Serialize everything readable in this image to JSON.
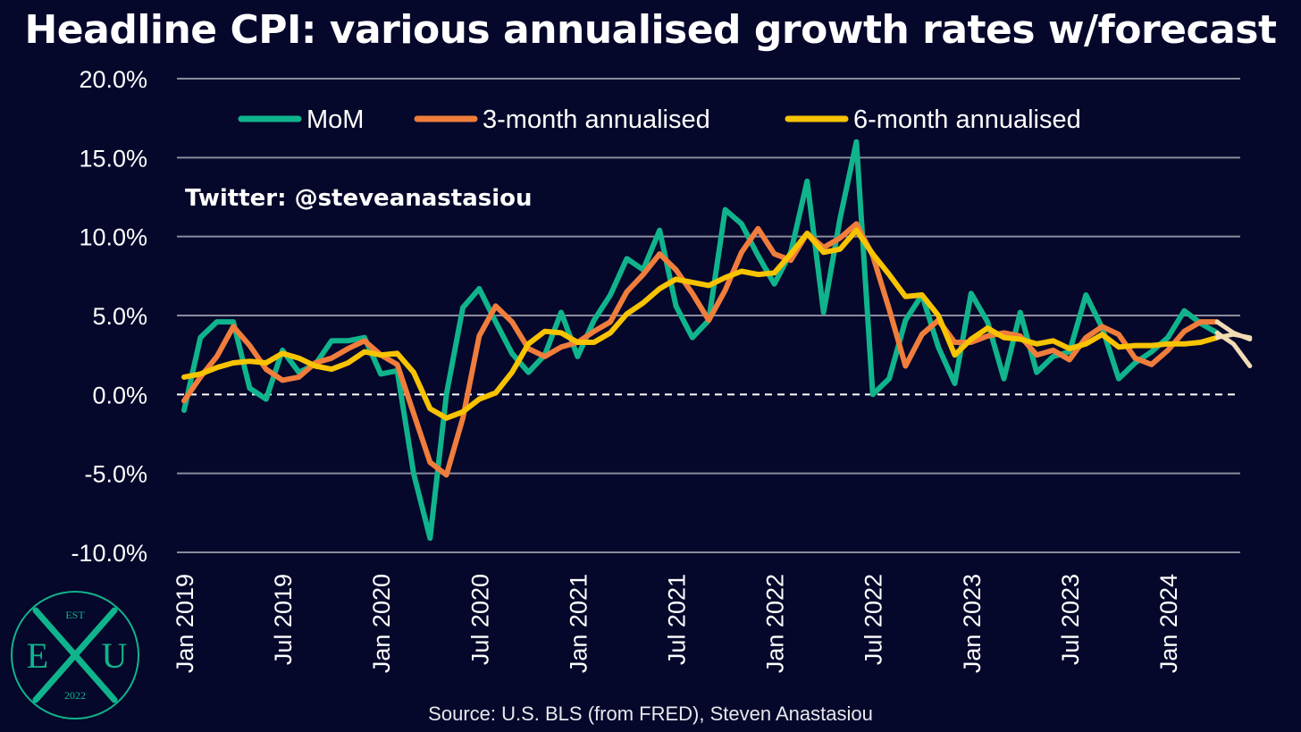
{
  "chart_data": {
    "type": "line",
    "title": "Headline CPI: various annualised growth rates w/forecast",
    "xlabel": "",
    "ylabel": "",
    "ylim": [
      -10,
      20
    ],
    "yticks": [
      -10,
      -5,
      0,
      5,
      10,
      15,
      20
    ],
    "ytick_labels": [
      "-10.0%",
      "-5.0%",
      "0.0%",
      "5.0%",
      "10.0%",
      "15.0%",
      "20.0%"
    ],
    "x_start": "Jan 2019",
    "x_end": "Sep 2024",
    "x_tick_labels": [
      "Jan 2019",
      "Jul 2019",
      "Jan 2020",
      "Jul 2020",
      "Jan 2021",
      "Jul 2021",
      "Jan 2022",
      "Jul 2022",
      "Jan 2023",
      "Jul 2023",
      "Jan 2024"
    ],
    "grid": true,
    "legend_position": "top",
    "annotation": "Twitter: @steveanastasiou",
    "source": "Source: U.S. BLS (from FRED), Steven Anastasiou",
    "forecast_months": [
      "Aug 2024",
      "Sep 2024"
    ],
    "forecast_color": "#f3dcb4",
    "series": [
      {
        "name": "MoM",
        "color": "#10b48c",
        "values": [
          -1.0,
          3.6,
          4.6,
          4.6,
          0.4,
          -0.3,
          2.8,
          1.4,
          1.9,
          3.4,
          3.4,
          3.6,
          1.3,
          1.5,
          -5.0,
          -9.1,
          0.0,
          5.5,
          6.7,
          4.6,
          2.6,
          1.4,
          2.5,
          5.2,
          2.4,
          4.7,
          6.3,
          8.6,
          7.9,
          10.4,
          5.6,
          3.6,
          4.7,
          11.7,
          10.8,
          8.8,
          7.0,
          9.0,
          13.5,
          5.2,
          11.1,
          16.0,
          0.0,
          1.0,
          4.7,
          6.3,
          3.0,
          0.7,
          6.4,
          4.6,
          1.0,
          5.2,
          1.4,
          2.4,
          2.7,
          6.3,
          4.2,
          1.0,
          2.0,
          2.7,
          3.6,
          5.3,
          4.5,
          3.9,
          3.2,
          1.8
        ]
      },
      {
        "name": "3-month annualised",
        "color": "#f07d3c",
        "values": [
          -0.4,
          1.1,
          2.4,
          4.3,
          3.1,
          1.6,
          0.9,
          1.1,
          2.0,
          2.3,
          2.9,
          3.4,
          2.5,
          1.9,
          -1.2,
          -4.3,
          -5.1,
          -1.5,
          3.7,
          5.6,
          4.6,
          2.9,
          2.4,
          3.0,
          3.3,
          4.0,
          4.6,
          6.5,
          7.6,
          8.9,
          7.9,
          6.4,
          4.7,
          6.6,
          9.0,
          10.5,
          8.9,
          8.5,
          10.2,
          9.3,
          9.9,
          10.8,
          8.8,
          5.4,
          1.8,
          3.8,
          4.7,
          3.3,
          3.3,
          3.7,
          3.9,
          3.7,
          2.5,
          2.8,
          2.2,
          3.6,
          4.3,
          3.8,
          2.3,
          1.9,
          2.8,
          4.0,
          4.6,
          4.6,
          3.9,
          3.5
        ]
      },
      {
        "name": "6-month annualised",
        "color": "#f8c300",
        "values": [
          1.1,
          1.3,
          1.7,
          2.0,
          2.1,
          2.0,
          2.6,
          2.3,
          1.8,
          1.6,
          2.0,
          2.7,
          2.5,
          2.6,
          1.4,
          -0.9,
          -1.5,
          -1.1,
          -0.3,
          0.1,
          1.4,
          3.2,
          4.0,
          3.9,
          3.3,
          3.3,
          3.9,
          5.1,
          5.8,
          6.7,
          7.3,
          7.1,
          6.9,
          7.4,
          7.8,
          7.6,
          7.7,
          8.9,
          10.2,
          9.0,
          9.2,
          10.4,
          8.9,
          7.6,
          6.2,
          6.3,
          5.0,
          2.5,
          3.5,
          4.2,
          3.6,
          3.5,
          3.2,
          3.4,
          2.9,
          3.2,
          3.8,
          3.0,
          3.1,
          3.1,
          3.2,
          3.2,
          3.3,
          3.6,
          3.8,
          3.6
        ]
      }
    ]
  },
  "logo": {
    "top_text": "EST",
    "left_letter": "E",
    "right_letter": "U",
    "bottom_text": "2022",
    "color": "#10b48c"
  }
}
